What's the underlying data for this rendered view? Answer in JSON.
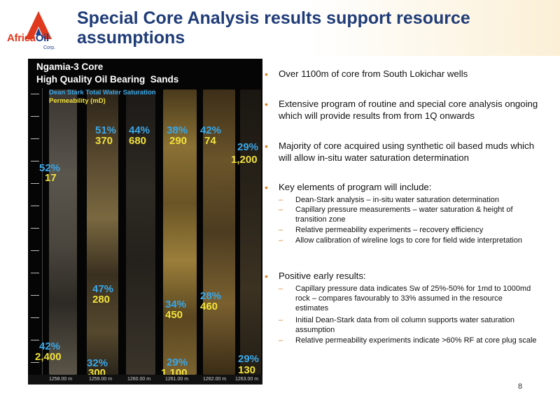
{
  "logo": {
    "part1": "Africa",
    "part2": "Oil",
    "corp": "Corp."
  },
  "title": "Special Core Analysis results support resource assumptions",
  "panel": {
    "title_line1": "Ngamia-3 Core",
    "title_line2": "High Quality Oil Bearing  Sands",
    "legend_saturation": "Dean Stark Total Water Saturation",
    "legend_permeability": "Permeability (mD)",
    "depths": [
      "1258.00 m",
      "1259.00 m",
      "1260.00 m",
      "1261.00 m",
      "1262.00 m",
      "1263.00 m"
    ],
    "samples": [
      {
        "sat": "52%",
        "perm": "17"
      },
      {
        "sat": "51%",
        "perm": "370"
      },
      {
        "sat": "44%",
        "perm": "680"
      },
      {
        "sat": "38%",
        "perm": "290"
      },
      {
        "sat": "42%",
        "perm": "74"
      },
      {
        "sat": "29%",
        "perm": "1,200"
      },
      {
        "sat": "47%",
        "perm": "280"
      },
      {
        "sat": "34%",
        "perm": "450"
      },
      {
        "sat": "28%",
        "perm": "460"
      },
      {
        "sat": "42%",
        "perm": "2,400"
      },
      {
        "sat": "32%",
        "perm": "300"
      },
      {
        "sat": "29%",
        "perm": "1,100"
      },
      {
        "sat": "29%",
        "perm": "130"
      }
    ]
  },
  "bullets": [
    {
      "text": "Over 1100m of core from South Lokichar wells"
    },
    {
      "text": "Extensive program of routine and special core analysis ongoing which will provide results from from 1Q onwards"
    },
    {
      "text": "Majority of core acquired using synthetic oil based muds which will allow in-situ water saturation determination"
    },
    {
      "text": "Key elements of program will include:",
      "sub": [
        "Dean-Stark analysis – in-situ water saturation determination",
        "Capillary pressure measurements – water saturation & height of transition zone",
        "Relative permeability experiments – recovery efficiency",
        "Allow calibration of wireline logs to core for field wide interpretation"
      ]
    },
    {
      "text": "Positive early results:",
      "sub": [
        "Capillary pressure data indicates Sw of 25%-50% for 1md to 1000md rock – compares favourably to 33% assumed in the resource estimates",
        "Initial Dean-Stark data from oil column supports water saturation assumption",
        "Relative permeability experiments indicate >60% RF at core plug scale"
      ]
    }
  ],
  "page_number": "8",
  "colors": {
    "title": "#1f3c78",
    "bullet": "#d9822b",
    "saturation": "#3aa7e8",
    "permeability": "#f2e23c",
    "logo_red": "#e03a1e",
    "logo_blue": "#1e3f8c"
  }
}
